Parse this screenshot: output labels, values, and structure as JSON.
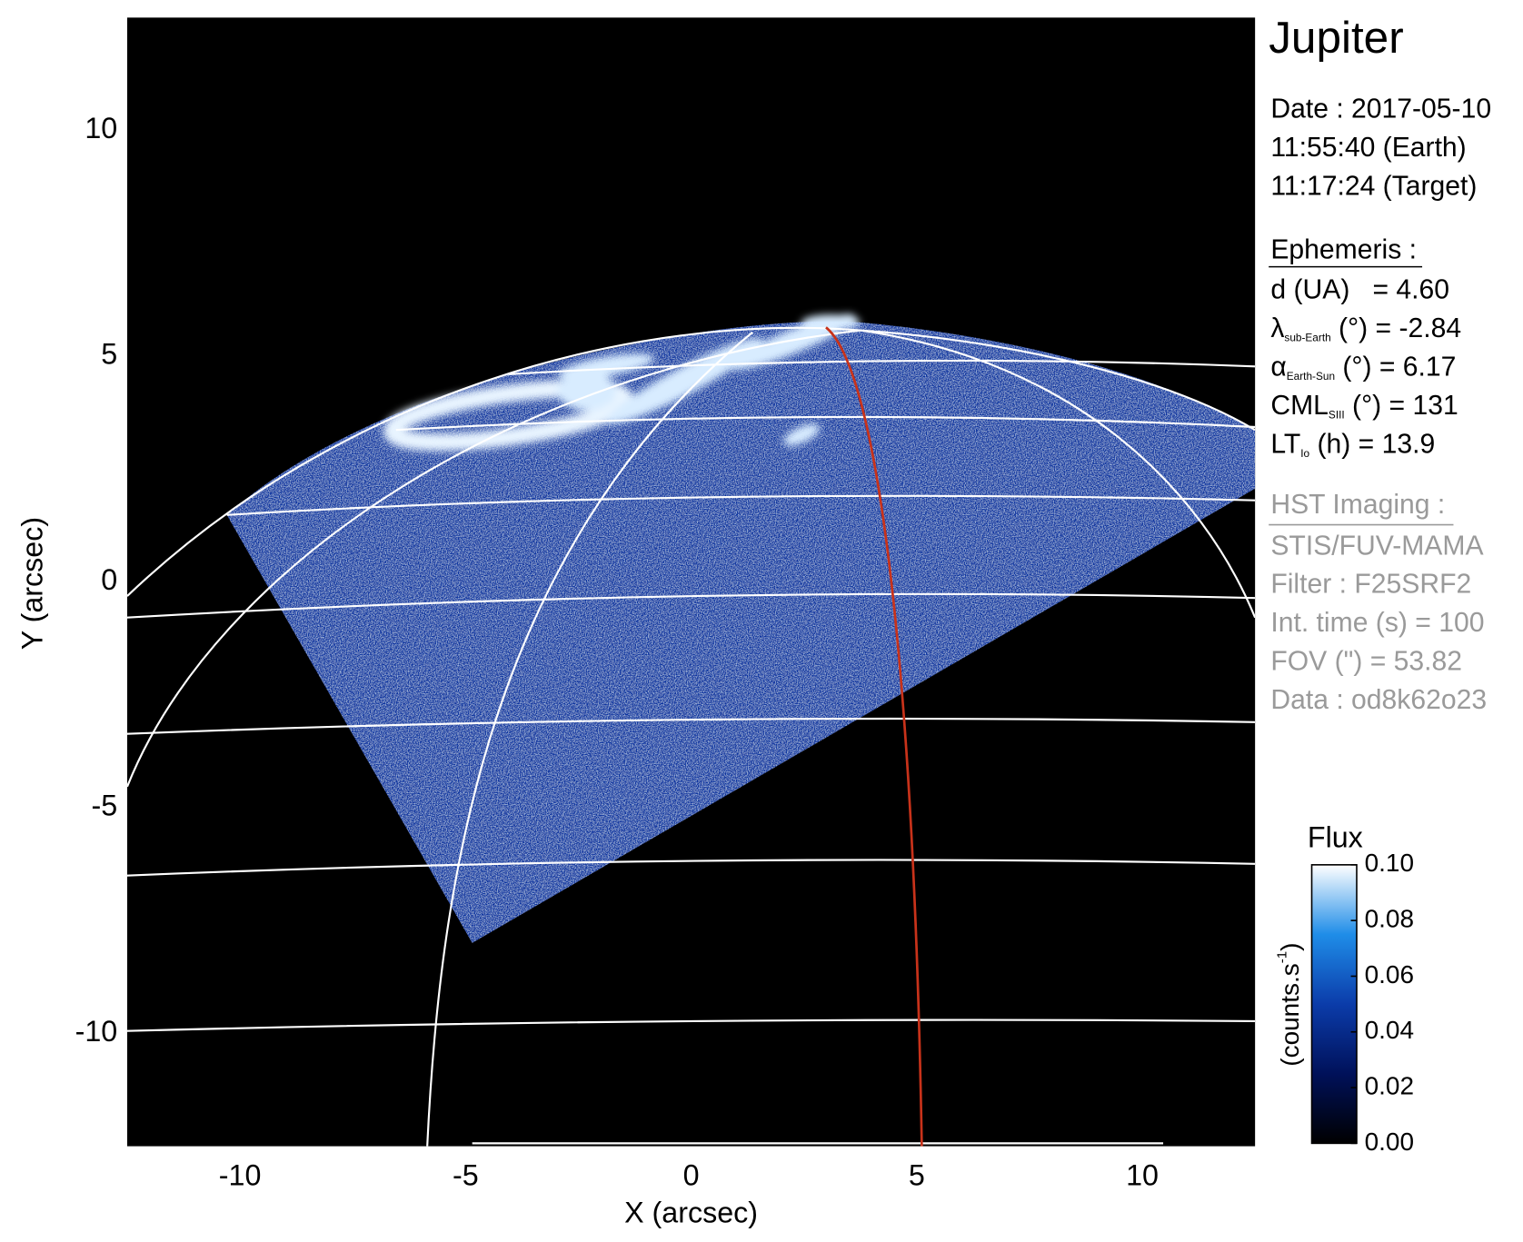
{
  "chart_data": {
    "type": "image",
    "title": "Jupiter",
    "xlabel": "X (arcsec)",
    "ylabel": "Y (arcsec)",
    "xlim": [
      -12.5,
      12.5
    ],
    "ylim": [
      -12.5,
      12.5
    ],
    "xticks": [
      -10,
      -5,
      0,
      5,
      10
    ],
    "yticks": [
      -10,
      -5,
      0,
      5,
      10
    ],
    "colorbar": {
      "label": "Flux",
      "units": [
        "(counts.s",
        "-1",
        ")"
      ],
      "clim": [
        0,
        0.1
      ],
      "ticks": [
        {
          "value": 0,
          "label": "0.00"
        },
        0.02,
        0.04,
        0.06,
        0.08,
        {
          "value": 0.1,
          "label": "0.10"
        }
      ],
      "colors": [
        "#000000",
        "#00115a",
        "#0b3caa",
        "#1f8de8",
        "#ffffff"
      ]
    },
    "observation": [
      "Date : 2017-05-10",
      "11:55:40 (Earth)",
      "11:17:24 (Target)"
    ],
    "ephemeris_title": "Ephemeris :",
    "ephemeris": [
      {
        "main": "d (UA)",
        "rest": "   = 4.60"
      },
      {
        "main": "λ",
        "sub": "sub-Earth",
        "rest": " (°) = -2.84"
      },
      {
        "main": "α",
        "sub": "Earth-Sun",
        "rest": " (°) = 6.17"
      },
      {
        "main": "CML",
        "sub": "SIII",
        "rest": " (°) = 131"
      },
      {
        "main": "LT",
        "sub": "Io",
        "rest": " (h) = 13.9"
      }
    ],
    "imaging_title": "HST Imaging :",
    "imaging": [
      "STIS/FUV-MAMA",
      "Filter : F25SRF2",
      "Int. time (s) = 100",
      "FOV (\") = 53.82",
      "Data : od8k62o23"
    ]
  }
}
